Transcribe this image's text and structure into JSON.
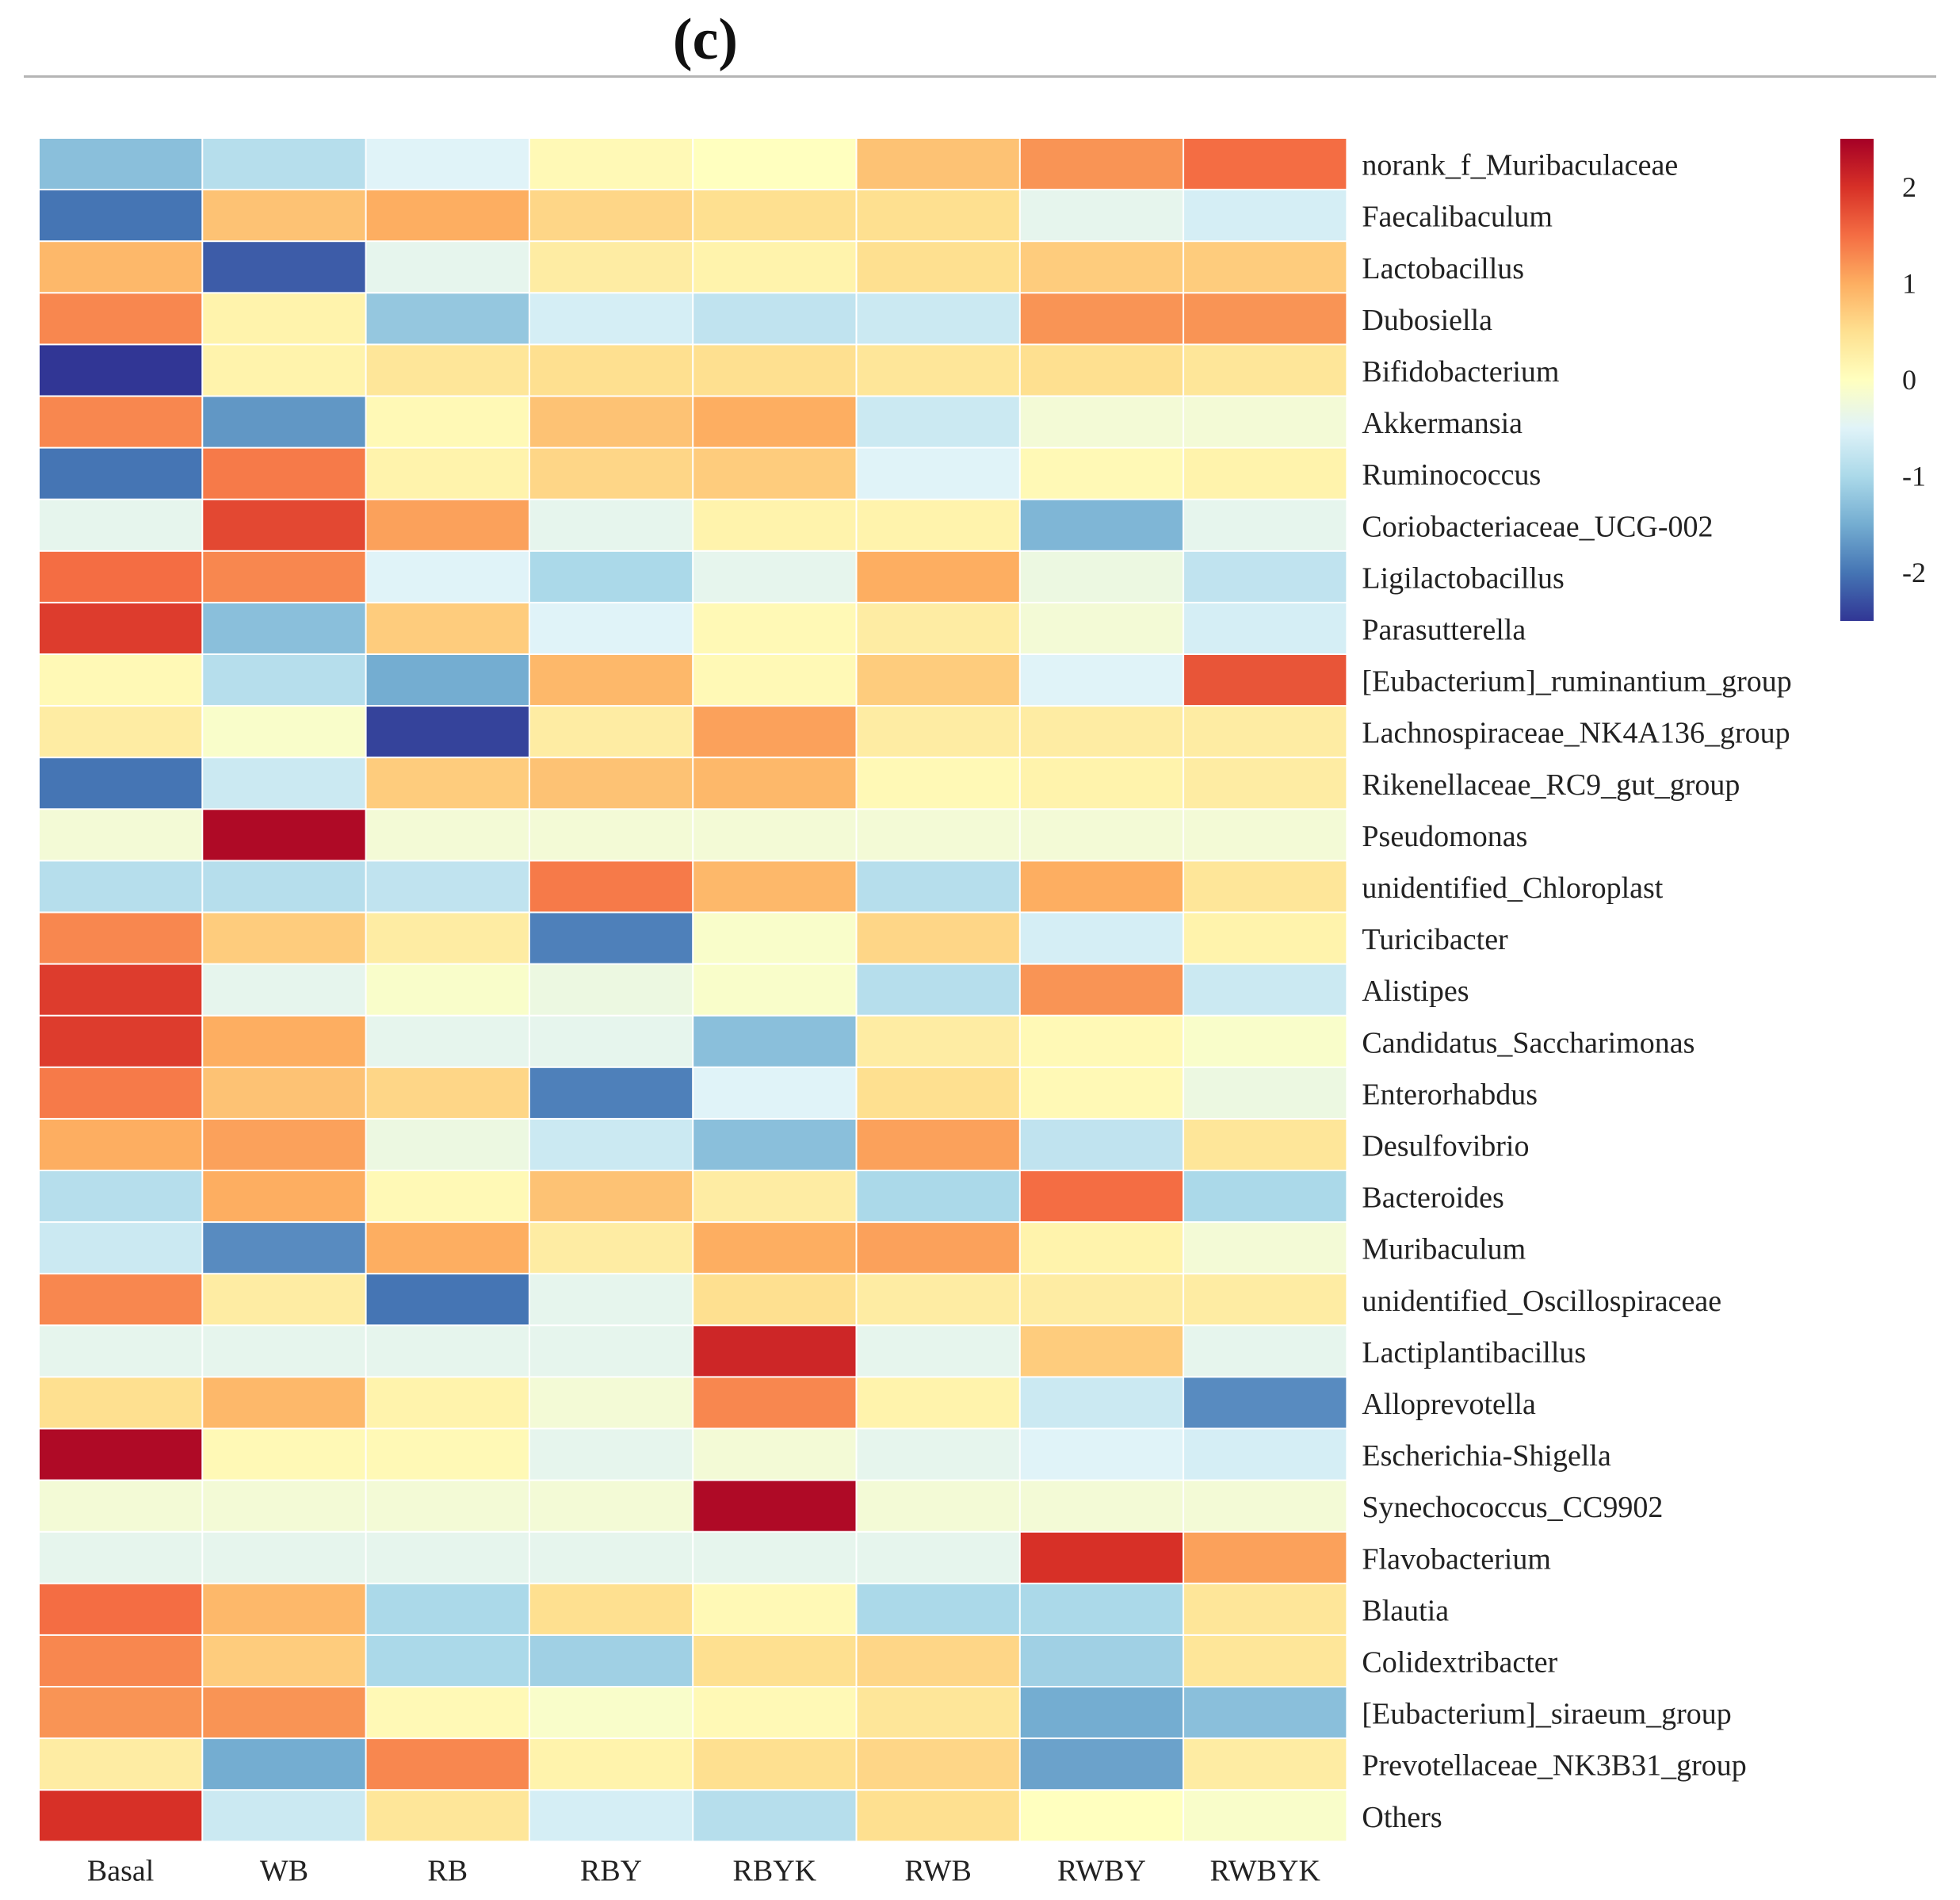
{
  "panel_label": "(c)",
  "chart_data": {
    "type": "heatmap",
    "title": "(c)",
    "columns": [
      "Basal",
      "WB",
      "RB",
      "RBY",
      "RBYK",
      "RWB",
      "RWBY",
      "RWBYK"
    ],
    "rows": [
      "norank_f_Muribaculaceae",
      "Faecalibaculum",
      "Lactobacillus",
      "Dubosiella",
      "Bifidobacterium",
      "Akkermansia",
      "Ruminococcus",
      "Coriobacteriaceae_UCG-002",
      "Ligilactobacillus",
      "Parasutterella",
      "[Eubacterium]_ruminantium_group",
      "Lachnospiraceae_NK4A136_group",
      "Rikenellaceae_RC9_gut_group",
      "Pseudomonas",
      "unidentified_Chloroplast",
      "Turicibacter",
      "Alistipes",
      "Candidatus_Saccharimonas",
      "Enterorhabdus",
      "Desulfovibrio",
      "Bacteroides",
      "Muribaculum",
      "unidentified_Oscillospiraceae",
      "Lactiplantibacillus",
      "Alloprevotella",
      "Escherichia-Shigella",
      "Synechococcus_CC9902",
      "Flavobacterium",
      "Blautia",
      "Colidextribacter",
      "[Eubacterium]_siraeum_group",
      "Prevotellaceae_NK3B31_group",
      "Others"
    ],
    "values": [
      [
        -1.3,
        -0.9,
        -0.5,
        0.1,
        0.0,
        0.8,
        1.2,
        1.5
      ],
      [
        -2.0,
        0.8,
        1.0,
        0.6,
        0.5,
        0.5,
        -0.4,
        -0.6
      ],
      [
        0.9,
        -2.2,
        -0.4,
        0.3,
        0.2,
        0.5,
        0.7,
        0.7
      ],
      [
        1.3,
        0.2,
        -1.2,
        -0.6,
        -0.8,
        -0.7,
        1.2,
        1.2
      ],
      [
        -2.5,
        0.2,
        0.4,
        0.5,
        0.5,
        0.4,
        0.5,
        0.4
      ],
      [
        1.3,
        -1.7,
        0.1,
        0.8,
        1.0,
        -0.7,
        -0.2,
        -0.2
      ],
      [
        -2.0,
        1.4,
        0.2,
        0.6,
        0.7,
        -0.5,
        0.1,
        0.2
      ],
      [
        -0.4,
        1.8,
        1.1,
        -0.4,
        0.2,
        0.2,
        -1.4,
        -0.4
      ],
      [
        1.5,
        1.3,
        -0.5,
        -1.0,
        -0.4,
        1.0,
        -0.3,
        -0.8
      ],
      [
        1.9,
        -1.3,
        0.7,
        -0.5,
        0.1,
        0.3,
        -0.2,
        -0.6
      ],
      [
        0.1,
        -0.9,
        -1.5,
        0.9,
        0.1,
        0.7,
        -0.5,
        1.7
      ],
      [
        0.3,
        -0.1,
        -2.4,
        0.3,
        1.1,
        0.3,
        0.3,
        0.3
      ],
      [
        -2.0,
        -0.7,
        0.7,
        0.8,
        0.9,
        0.1,
        0.2,
        0.3
      ],
      [
        -0.2,
        2.4,
        -0.2,
        -0.2,
        -0.2,
        -0.2,
        -0.2,
        -0.2
      ],
      [
        -0.9,
        -0.9,
        -0.8,
        1.4,
        0.9,
        -0.9,
        1.0,
        0.4
      ],
      [
        1.3,
        0.7,
        0.3,
        -1.9,
        -0.1,
        0.6,
        -0.6,
        0.2
      ],
      [
        1.9,
        -0.4,
        -0.1,
        -0.3,
        -0.1,
        -0.9,
        1.2,
        -0.7
      ],
      [
        1.9,
        1.0,
        -0.4,
        -0.4,
        -1.3,
        0.3,
        0.1,
        -0.1
      ],
      [
        1.4,
        0.8,
        0.6,
        -1.9,
        -0.5,
        0.5,
        0.1,
        -0.3
      ],
      [
        1.0,
        1.1,
        -0.3,
        -0.7,
        -1.3,
        1.1,
        -0.8,
        0.4
      ],
      [
        -0.9,
        1.0,
        0.1,
        0.8,
        0.3,
        -1.0,
        1.5,
        -1.0
      ],
      [
        -0.7,
        -1.8,
        1.0,
        0.3,
        1.0,
        1.1,
        0.2,
        -0.2
      ],
      [
        1.3,
        0.3,
        -2.0,
        -0.4,
        0.5,
        0.3,
        0.3,
        0.3
      ],
      [
        -0.4,
        -0.4,
        -0.4,
        -0.4,
        2.1,
        -0.4,
        0.7,
        -0.4
      ],
      [
        0.5,
        0.9,
        0.2,
        -0.2,
        1.3,
        0.2,
        -0.7,
        -1.8
      ],
      [
        2.4,
        0.1,
        0.1,
        -0.4,
        -0.2,
        -0.4,
        -0.5,
        -0.6
      ],
      [
        -0.2,
        -0.2,
        -0.2,
        -0.2,
        2.4,
        -0.2,
        -0.2,
        -0.2
      ],
      [
        -0.4,
        -0.4,
        -0.4,
        -0.4,
        -0.4,
        -0.4,
        2.0,
        1.1
      ],
      [
        1.5,
        0.9,
        -1.0,
        0.5,
        0.1,
        -1.0,
        -1.0,
        0.4
      ],
      [
        1.3,
        0.7,
        -1.0,
        -1.1,
        0.5,
        0.6,
        -1.1,
        0.4
      ],
      [
        1.2,
        1.2,
        0.1,
        -0.1,
        0.1,
        0.4,
        -1.5,
        -1.3
      ],
      [
        0.3,
        -1.5,
        1.3,
        0.2,
        0.5,
        0.6,
        -1.6,
        0.3
      ],
      [
        2.0,
        -0.7,
        0.4,
        -0.6,
        -0.9,
        0.5,
        0.0,
        -0.1
      ]
    ],
    "colorbar": {
      "ticks": [
        2,
        1,
        0,
        -1,
        -2
      ],
      "tick_labels": [
        "2",
        "1",
        "0",
        "-1",
        "-2"
      ],
      "range": [
        -2.5,
        2.5
      ],
      "colors": [
        "#313695",
        "#4575b4",
        "#74add1",
        "#abd9e9",
        "#e0f3f8",
        "#ffffbf",
        "#fee090",
        "#fdae61",
        "#f46d43",
        "#d73027",
        "#a50026"
      ]
    }
  }
}
